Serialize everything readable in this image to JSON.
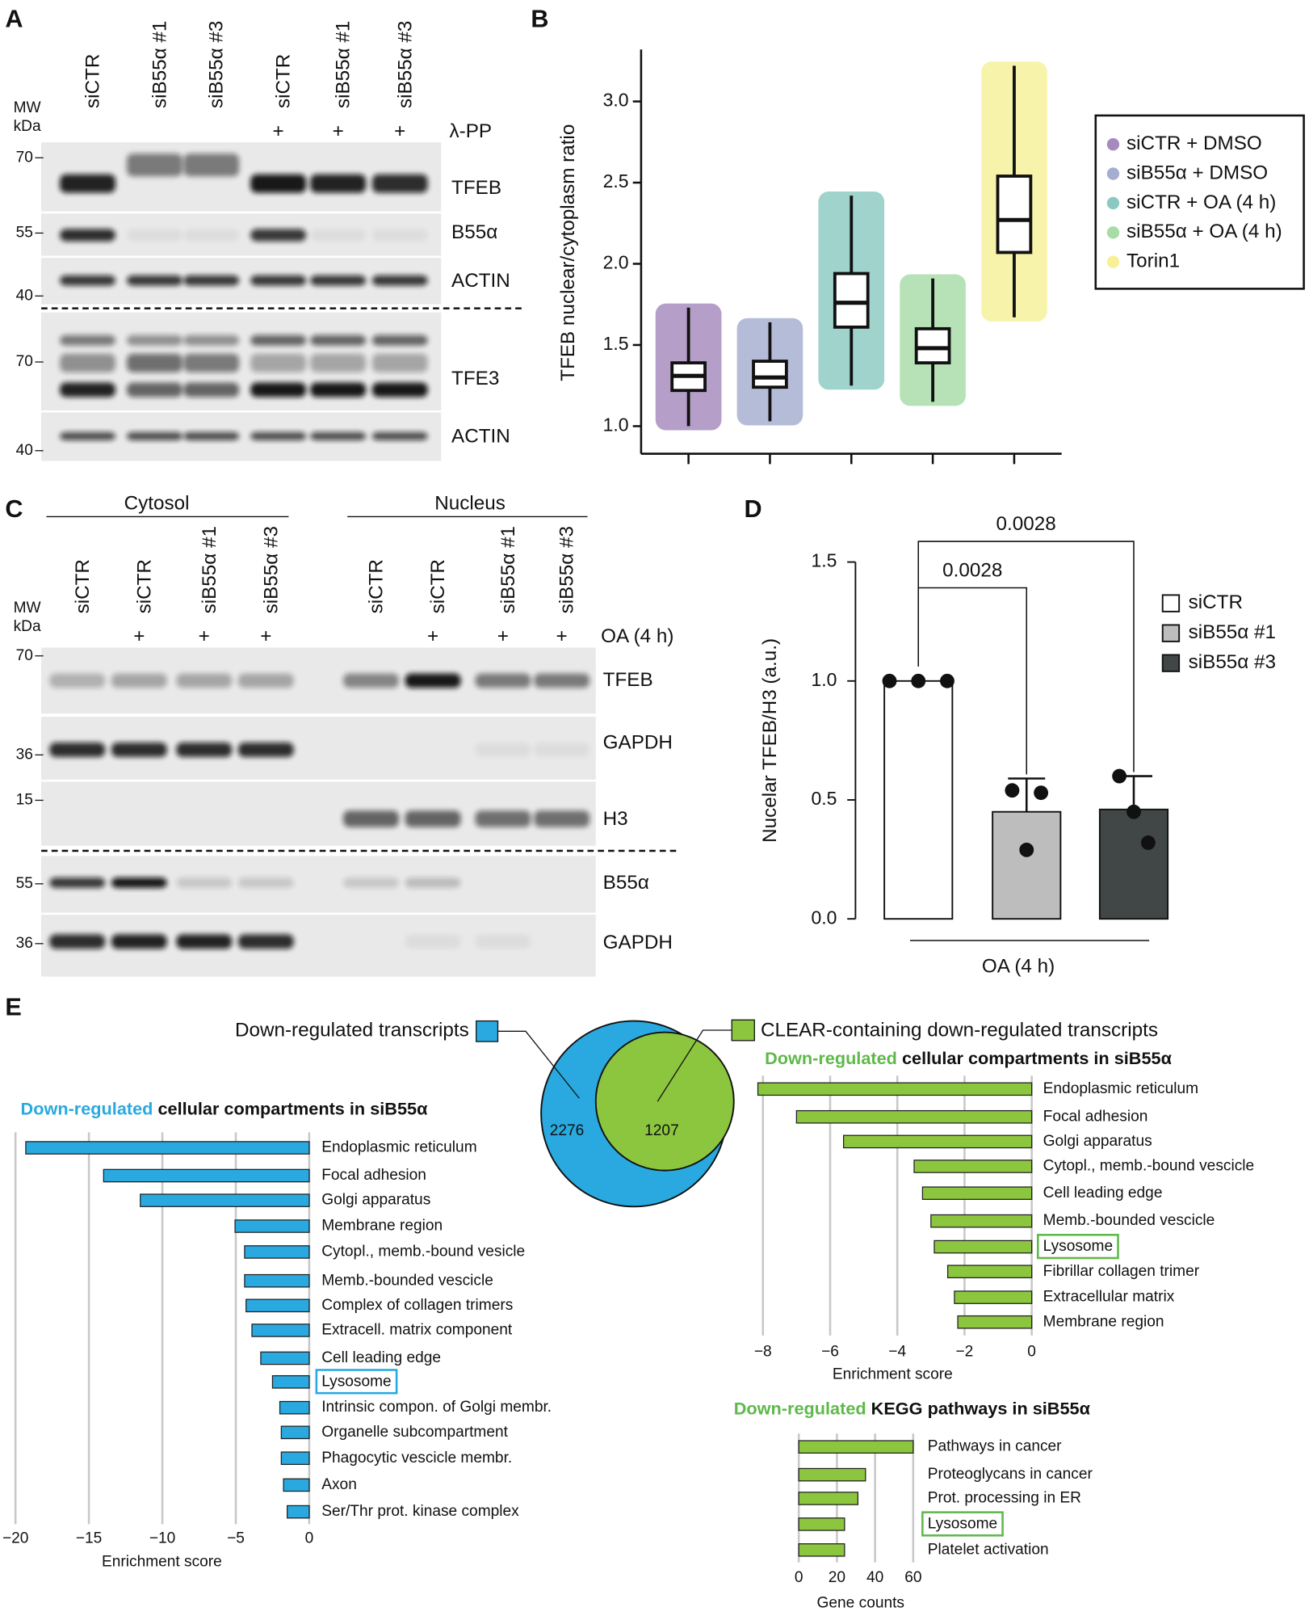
{
  "panel_labels": [
    "A",
    "B",
    "C",
    "D",
    "E"
  ],
  "blot_a": {
    "lanes": [
      "siCTR",
      "siB55α #1",
      "siB55α #3",
      "siCTR",
      "siB55α #1",
      "siB55α #3"
    ],
    "mw_header": [
      "MW",
      "kDa"
    ],
    "treatment": "λ-PP",
    "treatment_marks": [
      "+",
      "+",
      "+"
    ],
    "markers": [
      70,
      55,
      40,
      70,
      40
    ],
    "bands": [
      "TFEB",
      "B55α",
      "ACTIN",
      "TFE3",
      "ACTIN"
    ]
  },
  "blot_c": {
    "fractions": [
      "Cytosol",
      "Nucleus"
    ],
    "lanes": [
      "siCTR",
      "siCTR",
      "siB55α #1",
      "siB55α #3",
      "siCTR",
      "siCTR",
      "siB55α #1",
      "siB55α #3"
    ],
    "mw_header": [
      "MW",
      "kDa"
    ],
    "treatment": "OA (4 h)",
    "treatment_marks": [
      "+",
      "+",
      "+",
      "+",
      "+",
      "+"
    ],
    "markers": [
      70,
      36,
      15,
      55,
      36
    ],
    "bands": [
      "TFEB",
      "GAPDH",
      "H3",
      "B55α",
      "GAPDH"
    ]
  },
  "chart_data": [
    {
      "type": "box",
      "y_label": "TFEB nuclear/cytoplasm ratio",
      "ylim": [
        0.83,
        3.32
      ],
      "yticks": [
        {
          "value": 1,
          "label": "1.0"
        },
        1.5,
        {
          "value": 2,
          "label": "2.0"
        },
        2.5,
        {
          "value": 3,
          "label": "3.0"
        }
      ],
      "series": [
        {
          "name": "siCTR + DMSO",
          "color": "#5b2a86",
          "whislo": 1.0,
          "q1": 1.22,
          "median": 1.31,
          "q3": 1.39,
          "whishi": 1.73
        },
        {
          "name": "siB55α + DMSO",
          "color": "#5b6ba8",
          "whislo": 1.03,
          "q1": 1.24,
          "median": 1.3,
          "q3": 1.4,
          "whishi": 1.64
        },
        {
          "name": "siCTR + OA (4 h)",
          "color": "#2a9d8f",
          "whislo": 1.25,
          "q1": 1.61,
          "median": 1.76,
          "q3": 1.94,
          "whishi": 2.42
        },
        {
          "name": "siB55α + OA (4 h)",
          "color": "#5fbf5f",
          "whislo": 1.15,
          "q1": 1.39,
          "median": 1.48,
          "q3": 1.6,
          "whishi": 1.91
        },
        {
          "name": "Torin1",
          "color": "#f0e442",
          "whislo": 1.67,
          "q1": 2.07,
          "median": 2.27,
          "q3": 2.54,
          "whishi": 3.22
        }
      ]
    },
    {
      "type": "bar",
      "y_label": "Nucelar TFEB/H3 (a.u.)",
      "x_label": "OA (4 h)",
      "ylim": [
        0,
        1.5
      ],
      "yticks": [
        {
          "value": 0,
          "label": "0.0"
        },
        0.5,
        {
          "value": 1,
          "label": "1.0"
        },
        1.5
      ],
      "series": [
        {
          "name": "siCTR",
          "color": "#ffffff",
          "value": 1.0,
          "points": [
            1,
            1,
            1
          ]
        },
        {
          "name": "siB55α #1",
          "color": "#bdbdbd",
          "value": 0.45,
          "error": 0.14,
          "points": [
            0.54,
            0.29,
            0.53
          ]
        },
        {
          "name": "siB55α #3",
          "color": "#414647",
          "value": 0.46,
          "error": 0.14,
          "points": [
            0.6,
            0.45,
            0.32
          ]
        }
      ],
      "annotations": [
        "0.0028",
        "0.0028"
      ]
    },
    {
      "type": "hbar",
      "title_highlight": "Down-regulated",
      "title": "cellular compartments in siB55α",
      "highlight_color": "#29a9e0",
      "color": "#29a9e0",
      "x_label": "Enrichment score",
      "grid": true,
      "boxed": [
        9
      ],
      "categories": [
        "Endoplasmic reticulum",
        "Focal adhesion",
        "Golgi apparatus",
        "Membrane region",
        "Cytopl., memb.-bound vesicle",
        "Memb.-bounded vescicle",
        "Complex of collagen trimers",
        "Extracell. matrix component",
        "Cell leading edge",
        "Lysosome",
        "Intrinsic compon. of Golgi membr.",
        "Organelle subcompartment",
        "Phagocytic vescicle membr.",
        "Axon",
        "Ser/Thr prot. kinase complex"
      ],
      "values": [
        -19.3,
        -14.0,
        -11.5,
        -5.05,
        -4.4,
        -4.4,
        -4.3,
        -3.9,
        -3.3,
        -2.5,
        -2.0,
        -1.9,
        -1.9,
        -1.75,
        -1.5
      ],
      "xlim": [
        -20,
        0
      ],
      "xticks": [
        {
          "value": -20,
          "label": "−20"
        },
        {
          "value": -15,
          "label": "−15"
        },
        {
          "value": -10,
          "label": "−10"
        },
        {
          "value": -5,
          "label": "−5"
        },
        0
      ]
    },
    {
      "type": "hbar",
      "title_highlight": "Down-regulated",
      "title": "cellular compartments in siB55α",
      "highlight_color": "#5fb84a",
      "color": "#8cc63f",
      "x_label": "Enrichment score",
      "grid": true,
      "boxed": [
        6
      ],
      "categories": [
        "Endoplasmic reticulum",
        "Focal adhesion",
        "Golgi apparatus",
        "Cytopl., memb.-bound vescicle",
        "Cell leading edge",
        "Memb.-bounded vescicle",
        "Lysosome",
        "Fibrillar collagen trimer",
        "Extracellular matrix",
        "Membrane region"
      ],
      "values": [
        -8.15,
        -7.0,
        -5.6,
        -3.5,
        -3.25,
        -3.0,
        -2.9,
        -2.5,
        -2.3,
        -2.2
      ],
      "xlim": [
        -8.5,
        0
      ],
      "xticks": [
        {
          "value": -8,
          "label": "−8"
        },
        {
          "value": -6,
          "label": "−6"
        },
        {
          "value": -4,
          "label": "−4"
        },
        {
          "value": -2,
          "label": "−2"
        },
        0
      ]
    },
    {
      "type": "hbar",
      "title_highlight": "Down-regulated",
      "title": "KEGG pathways in siB55α",
      "highlight_color": "#5fb84a",
      "color": "#8cc63f",
      "x_label": "Gene counts",
      "grid": true,
      "boxed": [
        3
      ],
      "categories": [
        "Pathways in cancer",
        "Proteoglycans in cancer",
        "Prot. processing in ER",
        "Lysosome",
        "Platelet activation"
      ],
      "values": [
        60,
        35,
        31,
        24,
        24
      ],
      "xlim": [
        0,
        65
      ],
      "xticks": [
        0,
        20,
        40,
        60
      ]
    }
  ],
  "venn": {
    "sets": [
      {
        "name": "Down-regulated transcripts",
        "color": "#29a9e0",
        "value": 2276
      },
      {
        "name": "CLEAR-containing down-regulated transcripts",
        "color": "#8cc63f",
        "value": 1207
      }
    ]
  }
}
